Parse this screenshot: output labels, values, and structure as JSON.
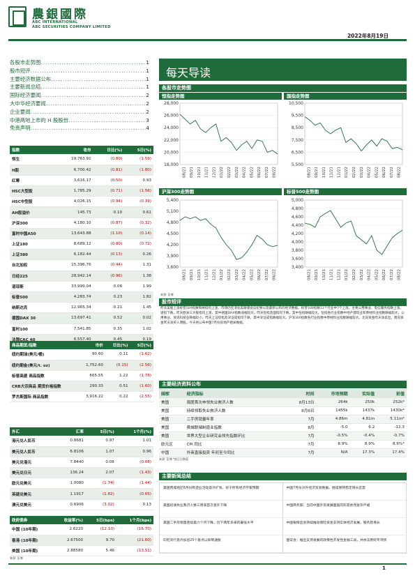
{
  "header": {
    "brand_cn": "農銀國際",
    "brand_en1": "ABC INTERNATIONAL",
    "brand_en2": "ABC SECURITIES COMPANY LIMITED",
    "date": "2022年8月19日"
  },
  "toc": [
    {
      "title": "各股市走势图",
      "page": "1"
    },
    {
      "title": "股市短评",
      "page": "1"
    },
    {
      "title": "主要经济数据公布",
      "page": "1"
    },
    {
      "title": "主要新闻总结",
      "page": "1"
    },
    {
      "title": "国际经济要闻",
      "page": "2"
    },
    {
      "title": "大中华经济要闻",
      "page": "2"
    },
    {
      "title": "企业要闻",
      "page": "2"
    },
    {
      "title": "中港两地上市的 H 股股份",
      "page": "3"
    },
    {
      "title": "免责声明",
      "page": "4"
    }
  ],
  "index_table": {
    "headers": [
      "指数",
      "收市",
      "日比(%)",
      "5日(%)"
    ],
    "rows": [
      [
        "恒生",
        "19,763.91",
        "(0.80)",
        "(1.59)"
      ],
      [
        "H股",
        "6,700.42",
        "(0.81)",
        "(1.80)"
      ],
      [
        "红筹",
        "3,616.17",
        "(0.50)",
        "0.93"
      ],
      [
        "HSC大型股",
        "1,785.29",
        "(0.71)",
        "(1.56)"
      ],
      [
        "HSC中型股",
        "4,026.15",
        "(0.94)",
        "(0.39)"
      ],
      [
        "AH股溢价",
        "145.73",
        "0.10",
        "0.61"
      ],
      [
        "沪深300",
        "4,180.10",
        "(0.87)",
        "(0.32)"
      ],
      [
        "富时中国A50",
        "13,643.88",
        "(1.10)",
        "(0.14)"
      ],
      [
        "上证180",
        "8,689.12",
        "(0.80)",
        "(0.72)"
      ],
      [
        "上证380",
        "6,182.44",
        "(0.13)",
        "0.26"
      ],
      [
        "台北加权",
        "15,396.76",
        "(0.44)",
        "1.31"
      ],
      [
        "日经225",
        "28,942.14",
        "(0.96)",
        "1.38"
      ],
      [
        "道琼斯",
        "33,999.04",
        "0.06",
        "1.99"
      ],
      [
        "标普500",
        "4,283.74",
        "0.23",
        "1.82"
      ],
      [
        "纳斯达克",
        "12,965.34",
        "0.21",
        "1.45"
      ],
      [
        "德国DAX 30",
        "13,697.41",
        "0.52",
        "0.02"
      ],
      [
        "富时100",
        "7,541.85",
        "0.35",
        "1.02"
      ],
      [
        "法国CAC 40",
        "6,557.40",
        "0.45",
        "0.19"
      ]
    ]
  },
  "commodity_table": {
    "headers": [
      "商品期货/指数",
      "市价",
      "日比(%)",
      "5日(%)"
    ],
    "rows": [
      [
        "纽约期油(美元/桶)",
        "90.60",
        "0.11",
        "(1.62)"
      ],
      [
        "纽约期金(美元/t. oz)",
        "1,752.60",
        "(0.15)",
        "(2.56)"
      ],
      [
        "标普高盛 商品指数",
        "665.55",
        "1.22",
        "(1.78)"
      ],
      [
        "CRB大宗商品 期货价格指数",
        "290.33",
        "0.51",
        "(1.60)"
      ],
      [
        "罗杰斯国际 商品指数",
        "3,916.22",
        "0.22",
        "(2.55)"
      ]
    ]
  },
  "fx_table": {
    "headers": [
      "外汇",
      "汇率",
      "5日(%)",
      "1个月(%)"
    ],
    "rows": [
      [
        "港元兑人民币",
        "0.8681",
        "0.97",
        "1.01"
      ],
      [
        "美元兑人民币",
        "6.8106",
        "1.07",
        "0.96"
      ],
      [
        "美元兑港元",
        "7.8440",
        "0.08",
        "(0.08)"
      ],
      [
        "美元兑日元",
        "136.24",
        "2.07",
        "(1.43)"
      ],
      [
        "欧元兑美元",
        "1.0080",
        "(1.74)",
        "(1.44)"
      ],
      [
        "英磅兑美元",
        "1.1917",
        "(1.82)",
        "(0.65)"
      ],
      [
        "澳元兑美元",
        "0.6906",
        "(3.02)",
        "0.13"
      ]
    ]
  },
  "bond_table": {
    "headers": [
      "政府债券",
      "收益率(%)",
      "5日(bps)",
      "1个月(bps)"
    ],
    "rows": [
      [
        "中国 (10年期)",
        "2.6220",
        "(12.10)",
        "(16.70)"
      ],
      [
        "香港 (10年期)",
        "2.67500",
        "9.70",
        "(21.60)"
      ],
      [
        "美国 (10年期)",
        "2.88580",
        "5.46",
        "(13.51)"
      ]
    ]
  },
  "source_label": "来源: 彭博",
  "title_band": "每天导读",
  "charts_section": "各股市走势图",
  "chart_xticks": [
    "08/21",
    "09/21",
    "10/21",
    "11/21",
    "12/21",
    "01/22",
    "02/22",
    "03/22",
    "04/22",
    "05/22",
    "06/22",
    "07/22",
    "08/22"
  ],
  "chart_data": [
    {
      "type": "line",
      "title": "恒指走势图",
      "ylim": [
        18000,
        28000
      ],
      "yticks": [
        18000,
        20000,
        22000,
        24000,
        26000,
        28000
      ],
      "ytick_labels": [
        "18,000",
        "20,000",
        "22,000",
        "24,000",
        "26,000",
        "28,000"
      ],
      "values": [
        26200,
        25400,
        24600,
        25200,
        23800,
        23200,
        24000,
        24600,
        21800,
        22400,
        21600,
        20300,
        21200,
        21800,
        20600,
        22000,
        21800,
        20000,
        20300,
        19700
      ]
    },
    {
      "type": "line",
      "title": "国指走势图",
      "ylim": [
        5500,
        10500
      ],
      "yticks": [
        5500,
        6500,
        7500,
        8500,
        9500,
        10500
      ],
      "ytick_labels": [
        "5,500",
        "6,500",
        "7,500",
        "8,500",
        "9,500",
        "10,500"
      ],
      "values": [
        9400,
        9100,
        8700,
        8900,
        8300,
        8000,
        8300,
        8500,
        7300,
        7600,
        7200,
        6600,
        7100,
        7500,
        7000,
        7600,
        7400,
        6800,
        6900,
        6700
      ]
    },
    {
      "type": "line",
      "title": "沪深300走势图",
      "ylim": [
        3600,
        5400
      ],
      "yticks": [
        3600,
        3900,
        4200,
        4500,
        4800,
        5100,
        5400
      ],
      "ytick_labels": [
        "3,600",
        "3,900",
        "4,200",
        "4,500",
        "4,800",
        "5,100",
        "5,400"
      ],
      "values": [
        4850,
        4950,
        4900,
        4950,
        4850,
        4900,
        4750,
        4650,
        4400,
        4200,
        4050,
        3800,
        3850,
        4000,
        4200,
        4450,
        4350,
        4200,
        4150,
        4180
      ]
    },
    {
      "type": "line",
      "title": "标普500走势图",
      "ylim": [
        3400,
        5000
      ],
      "yticks": [
        3400,
        3600,
        3800,
        4000,
        4200,
        4400,
        4600,
        4800,
        5000
      ],
      "ytick_labels": [
        "3,400",
        "3,600",
        "3,800",
        "4,000",
        "4,200",
        "4,400",
        "4,600",
        "4,800",
        "5,000"
      ],
      "values": [
        4450,
        4420,
        4350,
        4600,
        4680,
        4750,
        4550,
        4350,
        4450,
        4500,
        4150,
        4050,
        3950,
        4150,
        3800,
        3700,
        3900,
        4100,
        4200,
        4280
      ]
    }
  ],
  "commentary_section": "股市短评",
  "commentary": "昨天美股上涨标普500指数和纳指均上涨，市场仍在消化美联储会议纪要以及最新公布的经济数据。标普500指数11个行业中7个上涨，主要公用事业、电信服务指数上涨。道指下跌，昨天欧洲三大股指均上涨，其中德国DAX指数涨幅较大。昨天恒指及国指均下跌，其中恒指跌幅较大，恒指各行业指数中地产建筑业和原材料业指数跌幅较大，公用事业、资讯科技业跌幅较小。昨天上证综指及深证成指均下跌，其中深证成指跌幅较大。沪深300指数各行业指数中原材料业指数跌幅较大。北向资金昨天净卖出，南向资金昨天净买入港股。今天将公布中国7月份房地产相关数据。",
  "eco_section": "主要经济资料公布",
  "eco_table": {
    "headers": [
      "国家",
      "经济指标",
      "时间",
      "市场预期",
      "实际值",
      "前值"
    ],
    "rows": [
      [
        "美国",
        "周度首次申领失业救济人数",
        "8月13日",
        "264k",
        "250k",
        "252k*"
      ],
      [
        "美国",
        "持续领取失业救济人数",
        "8月6日",
        "1455k",
        "1437k",
        "1430k*"
      ],
      [
        "美国",
        "二手房销量年率",
        "7月",
        "4.86m",
        "4.81m",
        "5.11m*"
      ],
      [
        "美国",
        "费城联储制造业指数",
        "8月",
        "-5.0",
        "6.2",
        "-12.3"
      ],
      [
        "美国",
        "世界大型企业研究会领先指数环比",
        "7月",
        "-0.5%",
        "-0.4%",
        "-0.7%"
      ],
      [
        "欧元区",
        "CPI 同比",
        "7月",
        "8.9%",
        "8.9%",
        "8.6%*"
      ],
      [
        "中国",
        "外商直接投资 年初至今同比",
        "7月",
        "N/A",
        "17.3%",
        "17.4%"
      ]
    ],
    "note": "来源: 彭博 *修正后数值"
  },
  "news_section": "主要新闻总结",
  "news": [
    "美国费城地区8月份制造业活动意外扩张，好于所有经济学家预期",
    "中国7月份对外经济贸易数据，继续保持稳定增长态势",
    "美国初请失业救济人数三周来首次意外下降",
    "中国商务部：当前中国外贸发展面临的形势依然复杂严峻",
    "美国二手房销量连续第六个月下降，创下两年多来的最低水平",
    "中国银保监会持续推动保险资金支持实体经济发展，服务稳增长",
    "印尼央行意外加息25个基点以抑制通胀",
    "国常会：推出支持发展的政策性开发性金融工具，并依法用好专项债"
  ],
  "page_number": "1"
}
